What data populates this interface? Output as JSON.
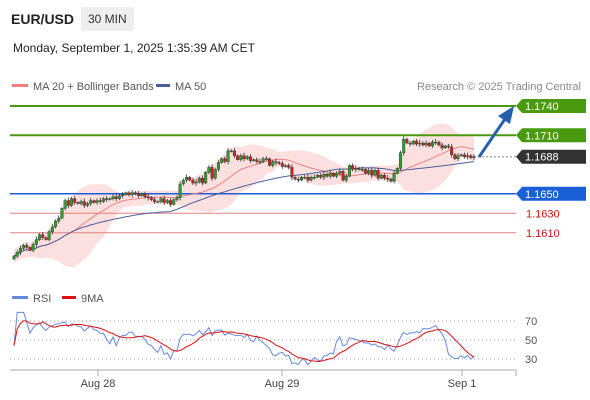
{
  "header": {
    "symbol": "EUR/USD",
    "timeframe": "30 MIN",
    "datetime": "Monday, September 1, 2025 1:35:39 AM CET"
  },
  "legend": {
    "ma20": "MA 20 + Bollinger Bands",
    "ma50": "MA 50",
    "credit": "Research © 2025 Trading Central"
  },
  "rsi_legend": {
    "rsi": "RSI",
    "ma": "9MA"
  },
  "colors": {
    "candle_up": "#2e9e2e",
    "candle_down": "#cc2222",
    "ma20": "#f08080",
    "bollinger_fill": "#fbdada",
    "ma50": "#4a5f9e",
    "target": "#4a9a10",
    "current": "#333333",
    "pivot": "#1a5fd6",
    "support": "#e08080",
    "support_text": "#cc1111",
    "arrow": "#2560b0",
    "rsi": "#6688dd",
    "rsi_ma": "#dd1111"
  },
  "chart_data": {
    "type": "candlestick",
    "price_levels": [
      {
        "label": "1.1740",
        "value": 1.174,
        "role": "target"
      },
      {
        "label": "1.1710",
        "value": 1.171,
        "role": "target"
      },
      {
        "label": "1.1688",
        "value": 1.1688,
        "role": "current"
      },
      {
        "label": "1.1650",
        "value": 1.165,
        "role": "pivot"
      },
      {
        "label": "1.1630",
        "value": 1.163,
        "role": "support"
      },
      {
        "label": "1.1610",
        "value": 1.161,
        "role": "support"
      }
    ],
    "x_tick_labels": [
      "Aug 28",
      "Aug 29",
      "Sep 1"
    ],
    "rsi_levels": [
      70,
      50,
      30
    ],
    "y_range": [
      1.1576,
      1.1765
    ],
    "closes": [
      1.1586,
      1.159,
      1.1594,
      1.1597,
      1.1595,
      1.1592,
      1.1598,
      1.1603,
      1.1608,
      1.1605,
      1.1603,
      1.1611,
      1.1616,
      1.1622,
      1.1625,
      1.1635,
      1.1643,
      1.1638,
      1.1645,
      1.1641,
      1.164,
      1.1642,
      1.1638,
      1.164,
      1.1643,
      1.1641,
      1.1643,
      1.1642,
      1.1645,
      1.1644,
      1.1645,
      1.1647,
      1.1645,
      1.1648,
      1.1649,
      1.1651,
      1.1649,
      1.1651,
      1.165,
      1.1648,
      1.165,
      1.1647,
      1.1646,
      1.1644,
      1.1642,
      1.1642,
      1.1645,
      1.1641,
      1.1643,
      1.1639,
      1.1644,
      1.1646,
      1.166,
      1.1664,
      1.1667,
      1.1664,
      1.1661,
      1.1662,
      1.1666,
      1.1661,
      1.1672,
      1.1677,
      1.1666,
      1.1675,
      1.1682,
      1.1686,
      1.1683,
      1.1694,
      1.1694,
      1.1689,
      1.1685,
      1.1689,
      1.1686,
      1.1688,
      1.1684,
      1.1685,
      1.1683,
      1.1683,
      1.1686,
      1.1686,
      1.1679,
      1.1683,
      1.1682,
      1.1681,
      1.1678,
      1.1679,
      1.1677,
      1.1667,
      1.1665,
      1.1664,
      1.1667,
      1.1667,
      1.1664,
      1.1667,
      1.1667,
      1.1669,
      1.1667,
      1.167,
      1.1668,
      1.1671,
      1.1668,
      1.1671,
      1.1673,
      1.1664,
      1.1668,
      1.1679,
      1.1675,
      1.1676,
      1.1675,
      1.1675,
      1.1671,
      1.1674,
      1.1669,
      1.1674,
      1.1666,
      1.1669,
      1.1666,
      1.1665,
      1.1663,
      1.1671,
      1.1676,
      1.1692,
      1.1706,
      1.1702,
      1.1701,
      1.1704,
      1.1701,
      1.1702,
      1.17,
      1.1702,
      1.1699,
      1.1703,
      1.1703,
      1.17,
      1.1697,
      1.1699,
      1.1698,
      1.169,
      1.1686,
      1.1689,
      1.169,
      1.1688,
      1.1689,
      1.1687,
      1.1688
    ],
    "series": [
      {
        "name": "MA 20 + Bollinger Bands"
      },
      {
        "name": "MA 50"
      }
    ],
    "rsi_series": [
      {
        "name": "RSI"
      },
      {
        "name": "9MA"
      }
    ],
    "grid": false
  }
}
